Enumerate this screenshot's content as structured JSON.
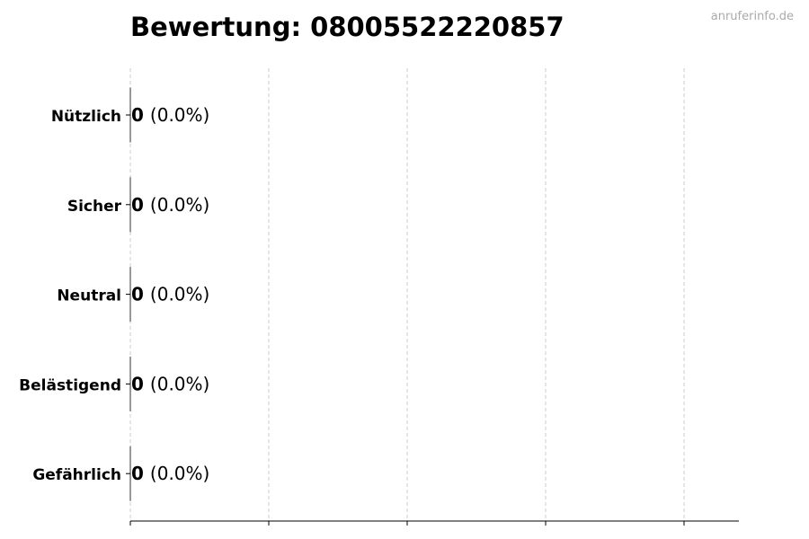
{
  "watermark": "anruferinfo.de",
  "chart_data": {
    "type": "bar",
    "orientation": "horizontal",
    "title": "Bewertung: 08005522220857",
    "categories": [
      "Nützlich",
      "Sicher",
      "Neutral",
      "Belästigend",
      "Gefährlich"
    ],
    "values": [
      0,
      0,
      0,
      0,
      0
    ],
    "data_labels": [
      {
        "count": "0",
        "percent": "(0.0%)"
      },
      {
        "count": "0",
        "percent": "(0.0%)"
      },
      {
        "count": "0",
        "percent": "(0.0%)"
      },
      {
        "count": "0",
        "percent": "(0.0%)"
      },
      {
        "count": "0",
        "percent": "(0.0%)"
      }
    ],
    "x_gridlines": 5,
    "grid": "x, dashed",
    "xlabel": "",
    "ylabel": "",
    "colors": {
      "edge": "#333333",
      "grid": "#cccccc",
      "watermark": "#aaaaaa"
    }
  }
}
